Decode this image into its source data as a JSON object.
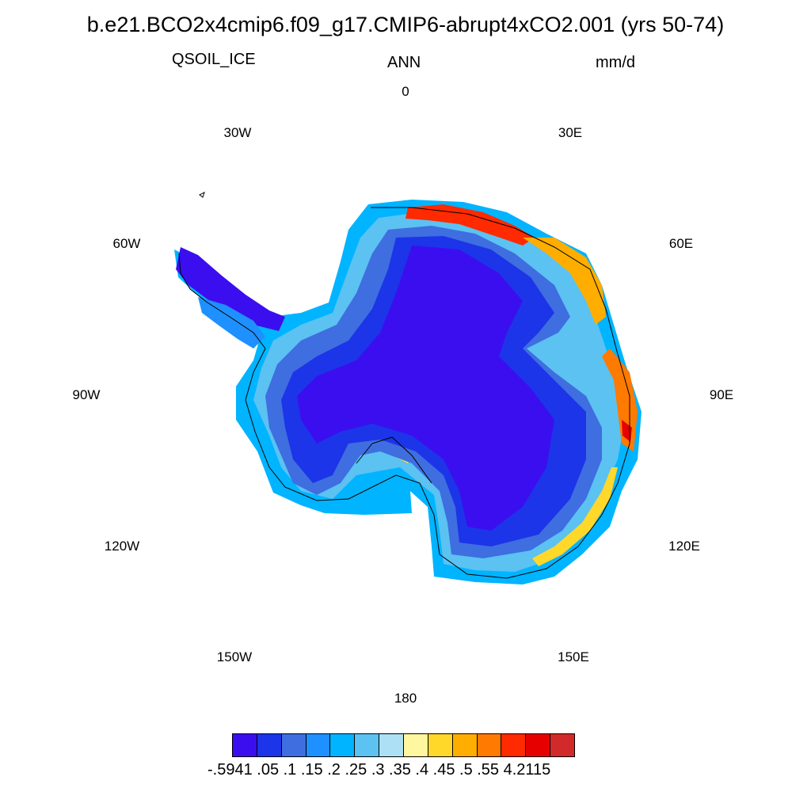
{
  "header": {
    "title": "b.e21.BCO2x4cmip6.f09_g17.CMIP6-abrupt4xCO2.001 (yrs 50-74)",
    "variable": "QSOIL_ICE",
    "season": "ANN",
    "units": "mm/d"
  },
  "map": {
    "projection": "polar-stereographic-south",
    "region": "Antarctica",
    "lon_labels": [
      "0",
      "30E",
      "60E",
      "90E",
      "120E",
      "150E",
      "180",
      "150W",
      "120W",
      "90W",
      "60W",
      "30W"
    ]
  },
  "colorbar": {
    "colors": [
      "#3b0ef0",
      "#1c35e8",
      "#3f6ee0",
      "#1e90ff",
      "#00b4ff",
      "#5bc2f2",
      "#aee0f5",
      "#fff7a0",
      "#ffd82a",
      "#ffae00",
      "#ff7a00",
      "#ff2a00",
      "#e60000",
      "#d22a2a"
    ],
    "label_text": "-.5941  .05  .1  .15  .2  .25  .3  .35  .4  .45  .5  .55  4.2115"
  },
  "chart_data": {
    "type": "heatmap",
    "title": "b.e21.BCO2x4cmip6.f09_g17.CMIP6-abrupt4xCO2.001 (yrs 50-74)",
    "variable": "QSOIL_ICE",
    "units": "mm/d",
    "levels": [
      -0.5941,
      0.05,
      0.1,
      0.15,
      0.2,
      0.25,
      0.3,
      0.35,
      0.4,
      0.45,
      0.5,
      0.55,
      4.2115
    ]
  }
}
